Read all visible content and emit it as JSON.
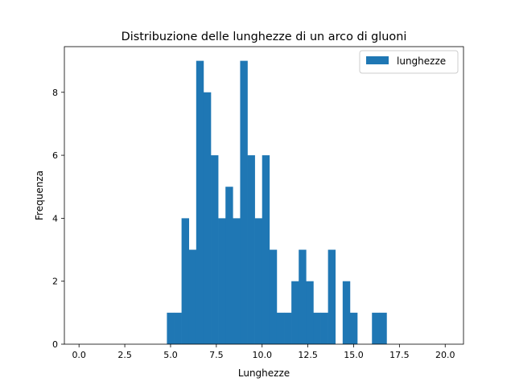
{
  "chart_data": {
    "type": "bar",
    "title": "Distribuzione delle lunghezze di un arco di gluoni",
    "xlabel": "Lunghezze",
    "ylabel": "Frequenza",
    "xlim": [
      -0.8,
      21.0
    ],
    "ylim": [
      0,
      9.45
    ],
    "xticks": [
      0.0,
      2.5,
      5.0,
      7.5,
      10.0,
      12.5,
      15.0,
      17.5,
      20.0
    ],
    "xtick_labels": [
      "0.0",
      "2.5",
      "5.0",
      "7.5",
      "10.0",
      "12.5",
      "15.0",
      "17.5",
      "20.0"
    ],
    "yticks": [
      0,
      2,
      4,
      6,
      8
    ],
    "ytick_labels": [
      "0",
      "2",
      "4",
      "6",
      "8"
    ],
    "bin_width": 0.4,
    "legend": {
      "position": "top-right",
      "entries": [
        "lunghezze"
      ]
    },
    "grid": false,
    "color": "#1f77b4",
    "series": [
      {
        "name": "lunghezze",
        "bins_start": [
          4.8,
          5.2,
          5.6,
          6.0,
          6.4,
          6.8,
          7.2,
          7.6,
          8.0,
          8.4,
          8.8,
          9.2,
          9.6,
          10.0,
          10.4,
          10.8,
          11.2,
          11.6,
          12.0,
          12.4,
          12.8,
          13.2,
          13.6,
          14.0,
          14.4,
          14.8,
          15.2,
          15.6,
          16.0,
          16.4
        ],
        "values": [
          1,
          1,
          4,
          3,
          9,
          8,
          6,
          4,
          5,
          4,
          9,
          6,
          4,
          6,
          3,
          1,
          1,
          2,
          3,
          2,
          1,
          1,
          3,
          0,
          2,
          1,
          0,
          0,
          1,
          1
        ]
      }
    ]
  }
}
